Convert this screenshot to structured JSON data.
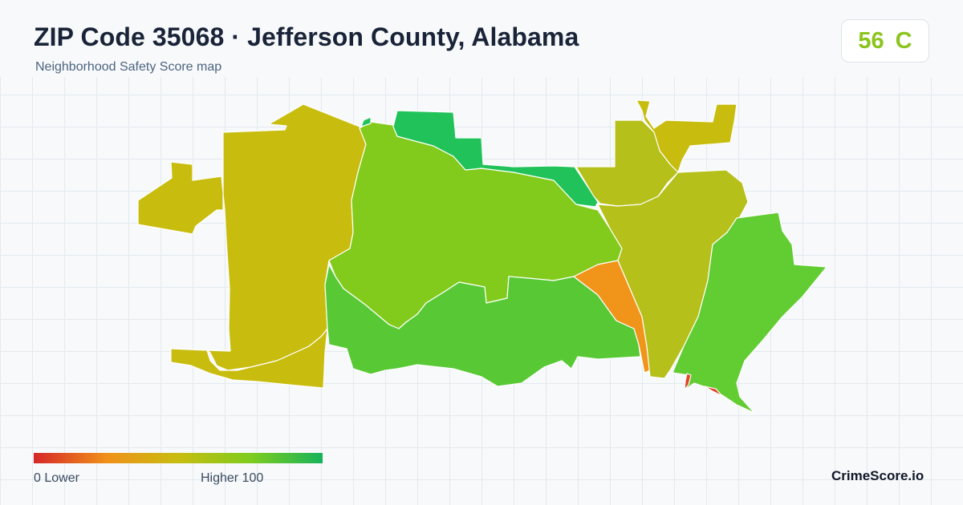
{
  "header": {
    "title": "ZIP Code 35068 · Jefferson County, Alabama",
    "subtitle": "Neighborhood Safety Score map"
  },
  "score": {
    "value": "56",
    "grade": "C",
    "color": "#8cc41e"
  },
  "legend": {
    "min_label": "0  Lower",
    "max_label": "Higher  100",
    "gradient": [
      "#d62728",
      "#f0901a",
      "#c8bd10",
      "#7fcc1e",
      "#17b35a"
    ]
  },
  "brand": {
    "name": "CrimeScore.io"
  },
  "map": {
    "colors": {
      "mustard": "#c8bd0e",
      "yellow_green": "#b5c01a",
      "lime": "#82cb1c",
      "green": "#58c935",
      "bright_green": "#62cc33",
      "emerald": "#22c25a",
      "orange": "#f0951a",
      "red": "#e0462a",
      "outline": "#ffffff"
    }
  }
}
